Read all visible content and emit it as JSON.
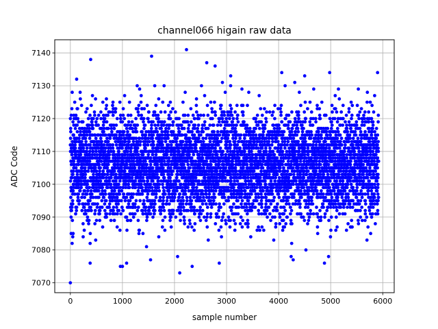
{
  "chart_data": {
    "type": "scatter",
    "title": "channel066 higain raw data",
    "xlabel": "sample number",
    "ylabel": "ADC Code",
    "xlim": [
      -300,
      6220
    ],
    "ylim": [
      7067,
      7144
    ],
    "xticks": [
      0,
      1000,
      2000,
      3000,
      4000,
      5000,
      6000
    ],
    "yticks": [
      7070,
      7080,
      7090,
      7100,
      7110,
      7120,
      7130,
      7140
    ],
    "grid": true,
    "marker_color": "#0000ff",
    "series": [
      {
        "n_points": 5900,
        "x_range": [
          0,
          5920
        ],
        "center": 7106,
        "typical_range": [
          7088,
          7124
        ],
        "outliers": [
          {
            "x": 0,
            "y": 7070
          },
          {
            "x": 15,
            "y": 7085
          },
          {
            "x": 35,
            "y": 7128
          },
          {
            "x": 120,
            "y": 7132
          },
          {
            "x": 390,
            "y": 7138
          },
          {
            "x": 380,
            "y": 7076
          },
          {
            "x": 960,
            "y": 7075
          },
          {
            "x": 1000,
            "y": 7075
          },
          {
            "x": 1080,
            "y": 7076
          },
          {
            "x": 1540,
            "y": 7077
          },
          {
            "x": 1560,
            "y": 7139
          },
          {
            "x": 1620,
            "y": 7130
          },
          {
            "x": 2060,
            "y": 7078
          },
          {
            "x": 2100,
            "y": 7073
          },
          {
            "x": 2230,
            "y": 7141
          },
          {
            "x": 2340,
            "y": 7075
          },
          {
            "x": 2620,
            "y": 7137
          },
          {
            "x": 2780,
            "y": 7136
          },
          {
            "x": 2860,
            "y": 7076
          },
          {
            "x": 2920,
            "y": 7131
          },
          {
            "x": 3080,
            "y": 7133
          },
          {
            "x": 4060,
            "y": 7134
          },
          {
            "x": 4240,
            "y": 7078
          },
          {
            "x": 4280,
            "y": 7077
          },
          {
            "x": 4500,
            "y": 7133
          },
          {
            "x": 4880,
            "y": 7076
          },
          {
            "x": 4960,
            "y": 7078
          },
          {
            "x": 4980,
            "y": 7134
          },
          {
            "x": 5900,
            "y": 7134
          }
        ]
      }
    ]
  }
}
